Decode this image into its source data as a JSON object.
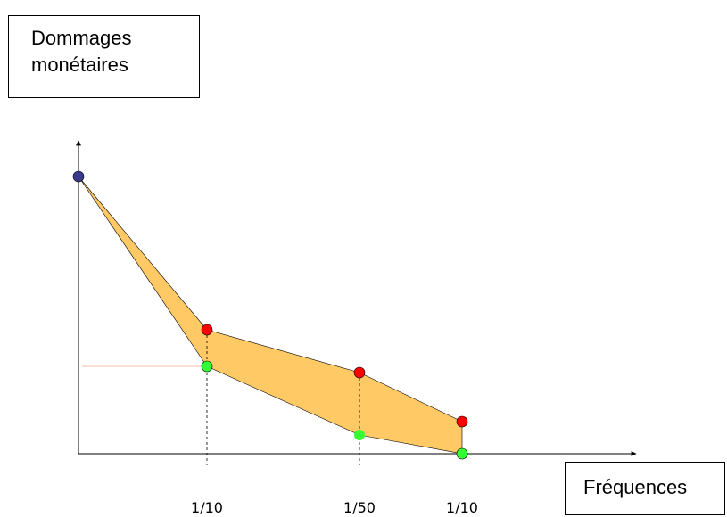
{
  "y_label": {
    "line1": "Dommages",
    "line2": "monétaires"
  },
  "x_label": "Fréquences",
  "x_ticks": [
    "1/10",
    "1/50",
    "1/10"
  ],
  "colors": {
    "fill": "#FFC966",
    "upper": "#FF0000",
    "lower": "#33FF33",
    "origin_point": "#3A3A8C",
    "axis": "#000000",
    "guide_line": "#F4C2A8"
  }
}
